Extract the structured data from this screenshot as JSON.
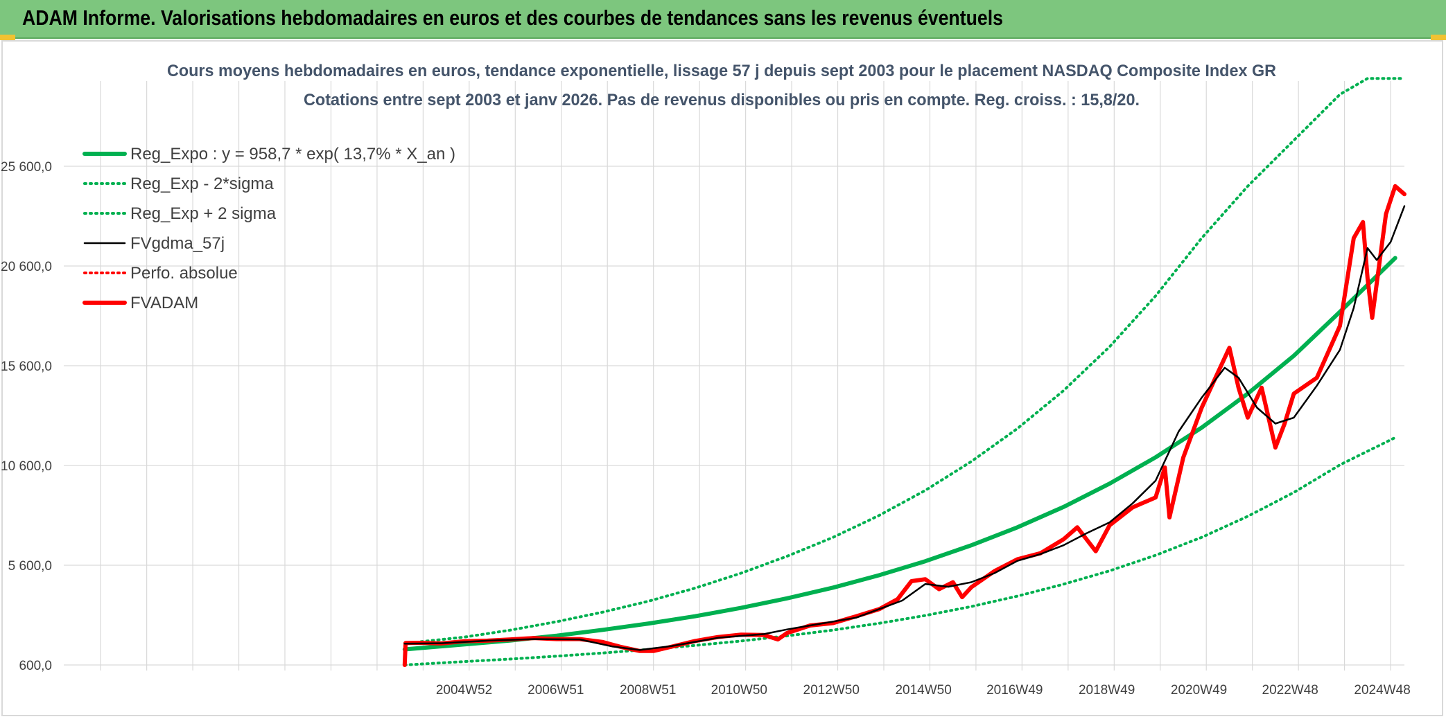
{
  "header": {
    "title": "ADAM Informe. Valorisations hebdomadaires en euros et des courbes de tendances sans les revenus éventuels"
  },
  "colors": {
    "header_bg": "#7dc67e",
    "trend": "#00b050",
    "band": "#00b050",
    "smooth": "#000000",
    "perf": "#ff0000",
    "adam": "#ff0000",
    "grid": "#d9d9d9",
    "title": "#44546a"
  },
  "chart_data": {
    "type": "line",
    "title_lines": [
      "Cours moyens hebdomadaires en euros, tendance exponentielle, lissage 57 j depuis sept 2003 pour le placement NASDAQ Composite Index GR",
      "Cotations entre sept 2003 et janv 2026. Pas de revenus disponibles ou pris en compte. Reg. croiss. : 15,8/20."
    ],
    "y_ticks": [
      "600,0",
      "5 600,0",
      "10 600,0",
      "15 600,0",
      "20 600,0",
      "25 600,0"
    ],
    "ylim": [
      600,
      30000
    ],
    "x_ticks": [
      {
        "label": "2004W52",
        "x": 2004.99
      },
      {
        "label": "2006W51",
        "x": 2006.98
      },
      {
        "label": "2008W51",
        "x": 2008.98
      },
      {
        "label": "2010W50",
        "x": 2010.96
      },
      {
        "label": "2012W50",
        "x": 2012.96
      },
      {
        "label": "2014W50",
        "x": 2014.96
      },
      {
        "label": "2016W49",
        "x": 2016.94
      },
      {
        "label": "2018W49",
        "x": 2018.94
      },
      {
        "label": "2020W49",
        "x": 2020.94
      },
      {
        "label": "2022W48",
        "x": 2022.92
      },
      {
        "label": "2024W48",
        "x": 2024.92
      }
    ],
    "xlim": [
      1996.3,
      2025.4
    ],
    "legend_placement": "top-left",
    "grid": true,
    "series": [
      {
        "name": "Reg_Expo : y = 958,7 * exp( 13,7% *  X_an )",
        "style": "solid-thick",
        "color": "#00b050",
        "x": [
          2003.7,
          2005,
          2006,
          2007,
          2008,
          2009,
          2010,
          2011,
          2012,
          2013,
          2014,
          2015,
          2016,
          2017,
          2018,
          2019,
          2020,
          2021,
          2022,
          2023,
          2024,
          2025.2
        ],
        "y": [
          1380,
          1630,
          1830,
          2070,
          2360,
          2680,
          3040,
          3460,
          3940,
          4480,
          5100,
          5800,
          6600,
          7500,
          8520,
          9690,
          11010,
          12500,
          14200,
          16100,
          18300,
          21000
        ]
      },
      {
        "name": "Reg_Exp - 2*sigma",
        "style": "dotted",
        "color": "#00b050",
        "x": [
          2003.7,
          2005,
          2006,
          2007,
          2008,
          2009,
          2010,
          2011,
          2012,
          2013,
          2014,
          2015,
          2016,
          2017,
          2018,
          2019,
          2020,
          2021,
          2022,
          2023,
          2024,
          2025.2
        ],
        "y": [
          600,
          770,
          900,
          1040,
          1200,
          1380,
          1580,
          1800,
          2060,
          2350,
          2690,
          3080,
          3530,
          4050,
          4650,
          5320,
          6100,
          7000,
          8050,
          9250,
          10630,
          12000
        ]
      },
      {
        "name": "Reg_Exp + 2 sigma",
        "style": "dotted",
        "color": "#00b050",
        "x": [
          2003.7,
          2005,
          2006,
          2007,
          2008,
          2009,
          2010,
          2011,
          2012,
          2013,
          2014,
          2015,
          2016,
          2017,
          2018,
          2019,
          2020,
          2021,
          2022,
          2023,
          2024,
          2024.6,
          2025.4
        ],
        "y": [
          1680,
          2000,
          2350,
          2770,
          3250,
          3800,
          4450,
          5200,
          6050,
          7000,
          8100,
          9350,
          10800,
          12450,
          14350,
          16550,
          19100,
          22000,
          24600,
          26900,
          29200,
          30000,
          30000
        ]
      },
      {
        "name": "FVgdma_57j",
        "style": "solid",
        "color": "#000000",
        "x": [
          2003.7,
          2004.5,
          2005.5,
          2006.5,
          2007.5,
          2008.2,
          2008.8,
          2009.5,
          2010.5,
          2011.5,
          2012,
          2012.5,
          2013.5,
          2014.5,
          2015,
          2015.5,
          2016,
          2016.5,
          2017,
          2017.5,
          2018,
          2018.5,
          2019,
          2019.5,
          2020,
          2020.5,
          2021,
          2021.5,
          2021.8,
          2022.2,
          2022.6,
          2023,
          2023.5,
          2024,
          2024.3,
          2024.6,
          2024.8,
          2025.1,
          2025.4
        ],
        "y": [
          1670,
          1690,
          1820,
          1900,
          1880,
          1530,
          1350,
          1550,
          1960,
          2150,
          2380,
          2580,
          2970,
          3830,
          4660,
          4520,
          4750,
          5200,
          5820,
          6160,
          6600,
          7200,
          7750,
          8700,
          9840,
          12300,
          14000,
          15500,
          15000,
          13500,
          12700,
          13000,
          14600,
          16400,
          18500,
          21500,
          20900,
          21800,
          23600
        ]
      },
      {
        "name": "Perfo. absolue",
        "style": "dotted",
        "color": "#ff0000",
        "x": [],
        "y": []
      },
      {
        "name": "FVADAM",
        "style": "solid-thick",
        "color": "#ff0000",
        "x": [
          2003.7,
          2003.72,
          2004,
          2004.5,
          2005,
          2005.5,
          2006,
          2006.5,
          2007,
          2007.5,
          2008,
          2008.4,
          2008.8,
          2009.1,
          2009.5,
          2010,
          2010.5,
          2011,
          2011.5,
          2011.8,
          2012,
          2012.5,
          2013,
          2013.5,
          2014,
          2014.4,
          2014.7,
          2015,
          2015.3,
          2015.6,
          2015.8,
          2016,
          2016.5,
          2017,
          2017.5,
          2018,
          2018.3,
          2018.7,
          2019,
          2019.5,
          2020,
          2020.2,
          2020.3,
          2020.6,
          2021,
          2021.3,
          2021.6,
          2021.8,
          2022,
          2022.3,
          2022.6,
          2022.8,
          2023,
          2023.5,
          2024,
          2024.3,
          2024.5,
          2024.6,
          2024.7,
          2024.9,
          2025,
          2025.2,
          2025.4
        ],
        "y": [
          600,
          1700,
          1710,
          1680,
          1790,
          1820,
          1880,
          1950,
          1900,
          1900,
          1750,
          1500,
          1300,
          1300,
          1520,
          1800,
          2000,
          2120,
          2100,
          1880,
          2200,
          2580,
          2700,
          3040,
          3400,
          3900,
          4800,
          4900,
          4400,
          4750,
          4000,
          4500,
          5300,
          5900,
          6200,
          6900,
          7500,
          6300,
          7600,
          8500,
          9000,
          10500,
          8000,
          11000,
          13500,
          15000,
          16500,
          14500,
          13000,
          14500,
          11500,
          12700,
          14200,
          15000,
          17600,
          22000,
          22800,
          20000,
          18000,
          21500,
          23200,
          24600,
          24200
        ]
      }
    ]
  }
}
